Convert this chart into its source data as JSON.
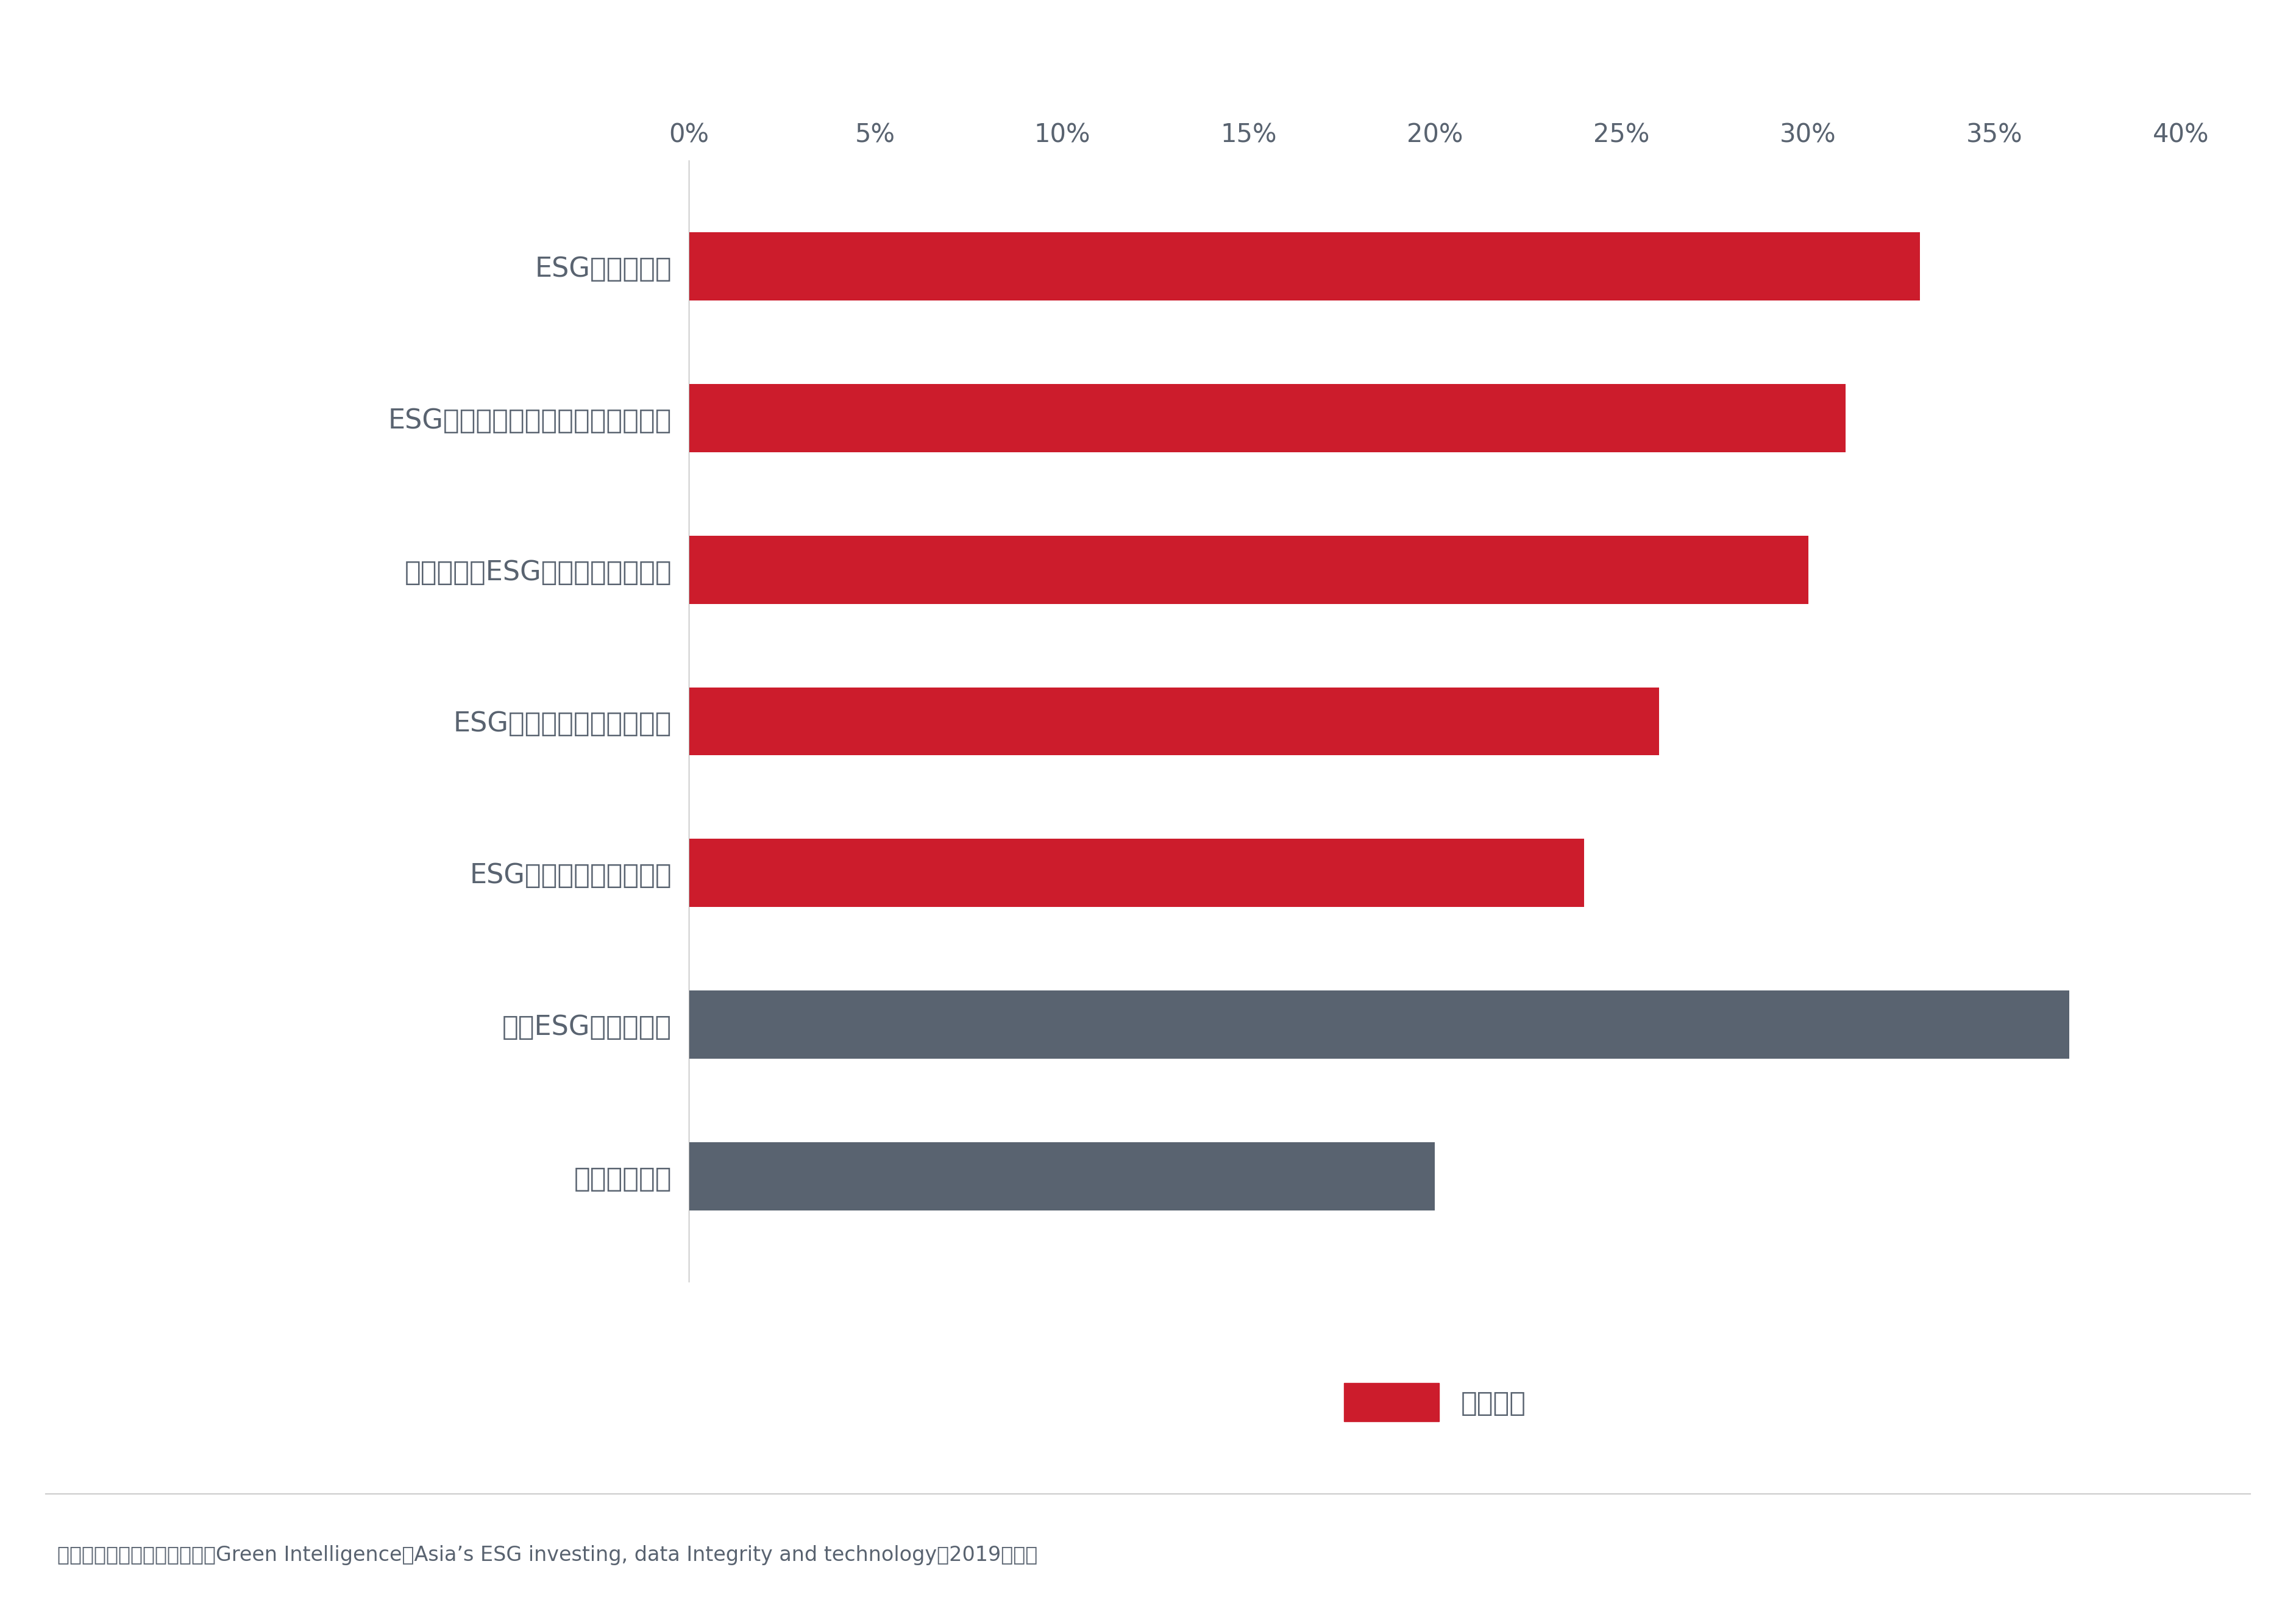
{
  "categories": [
    "缺乏客戶需求",
    "缺乏ESG意識和理解",
    "ESG數據來源的透明度低",
    "ESG評分和數據應用不一致",
    "缺乏明確的ESG標準、術語及指標",
    "ESG數據不足，難以作出一致的決策",
    "ESG數據不完善"
  ],
  "values": [
    20,
    37,
    24,
    26,
    30,
    31,
    33
  ],
  "colors": [
    "#596370",
    "#596370",
    "#cc1c2c",
    "#cc1c2c",
    "#cc1c2c",
    "#cc1c2c",
    "#cc1c2c"
  ],
  "xlim": [
    0,
    40
  ],
  "xticks": [
    0,
    5,
    10,
    15,
    20,
    25,
    30,
    35,
    40
  ],
  "bar_height": 0.45,
  "background_color": "#ffffff",
  "text_color": "#596370",
  "legend_label": "數據相關",
  "legend_color": "#cc1c2c",
  "footer_text": "資料來源：經濟學人信息部。Green Intelligence：Asia’s ESG investing, data Integrity and technology（2019年）。",
  "label_fontsize": 32,
  "tick_fontsize": 30,
  "footer_fontsize": 24,
  "legend_fontsize": 32
}
